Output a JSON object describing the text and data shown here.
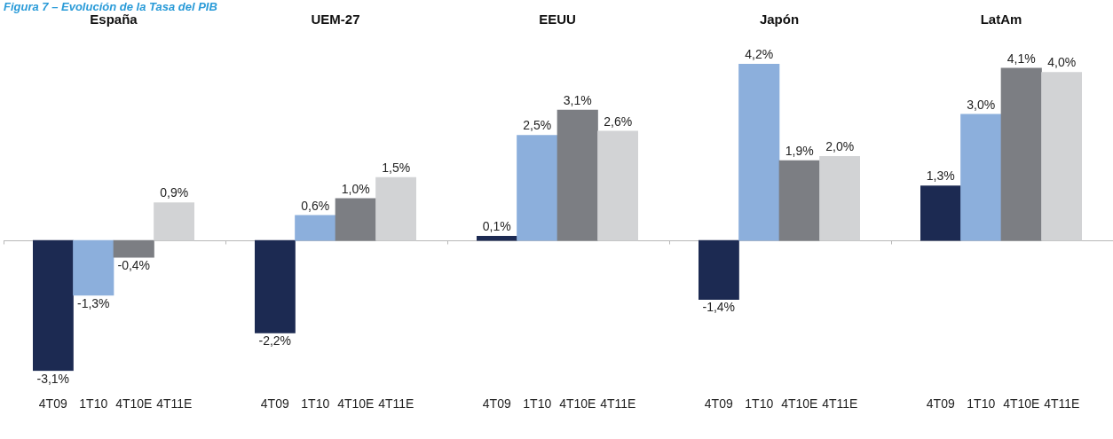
{
  "chart_data": [
    {
      "type": "bar",
      "title": "España",
      "annotations": [
        "Figura 7 – Evolución de la Tasa del PIB"
      ],
      "categories": [
        "4T09",
        "1T10",
        "4T10E",
        "4T11E"
      ],
      "values": [
        -3.1,
        -1.3,
        -0.4,
        0.9
      ],
      "colors": [
        "#1c2a52",
        "#8cafdc",
        "#7c7e83",
        "#d2d3d5"
      ],
      "value_labels": [
        "-3,1%",
        "-1,3%",
        "-0,4%",
        "0,9%"
      ],
      "tick_labels": "x"
    },
    {
      "type": "bar",
      "title": "UEM-27",
      "categories": [
        "4T09",
        "1T10",
        "4T10E",
        "4T11E"
      ],
      "values": [
        -2.2,
        0.6,
        1.0,
        1.5
      ],
      "colors": [
        "#1c2a52",
        "#8cafdc",
        "#7c7e83",
        "#d2d3d5"
      ],
      "value_labels": [
        "-2,2%",
        "0,6%",
        "1,0%",
        "1,5%"
      ],
      "tick_labels": "x"
    },
    {
      "type": "bar",
      "title": "EEUU",
      "categories": [
        "4T09",
        "1T10",
        "4T10E",
        "4T11E"
      ],
      "values": [
        0.1,
        2.5,
        3.1,
        2.6
      ],
      "colors": [
        "#1c2a52",
        "#8cafdc",
        "#7c7e83",
        "#d2d3d5"
      ],
      "value_labels": [
        "0,1%",
        "2,5%",
        "3,1%",
        "2,6%"
      ],
      "tick_labels": "x"
    },
    {
      "type": "bar",
      "title": "Japón",
      "categories": [
        "4T09",
        "1T10",
        "4T10E",
        "4T11E"
      ],
      "values": [
        -1.4,
        4.2,
        1.9,
        2.0
      ],
      "colors": [
        "#1c2a52",
        "#8cafdc",
        "#7c7e83",
        "#d2d3d5"
      ],
      "value_labels": [
        "-1,4%",
        "4,2%",
        "1,9%",
        "2,0%"
      ],
      "tick_labels": "x"
    },
    {
      "type": "bar",
      "title": "LatAm",
      "categories": [
        "4T09",
        "1T10",
        "4T10E",
        "4T11E"
      ],
      "values": [
        1.3,
        3.0,
        4.1,
        4.0
      ],
      "colors": [
        "#1c2a52",
        "#8cafdc",
        "#7c7e83",
        "#d2d3d5"
      ],
      "value_labels": [
        "1,3%",
        "3,0%",
        "4,1%",
        "4,0%"
      ],
      "tick_labels": "x"
    }
  ]
}
